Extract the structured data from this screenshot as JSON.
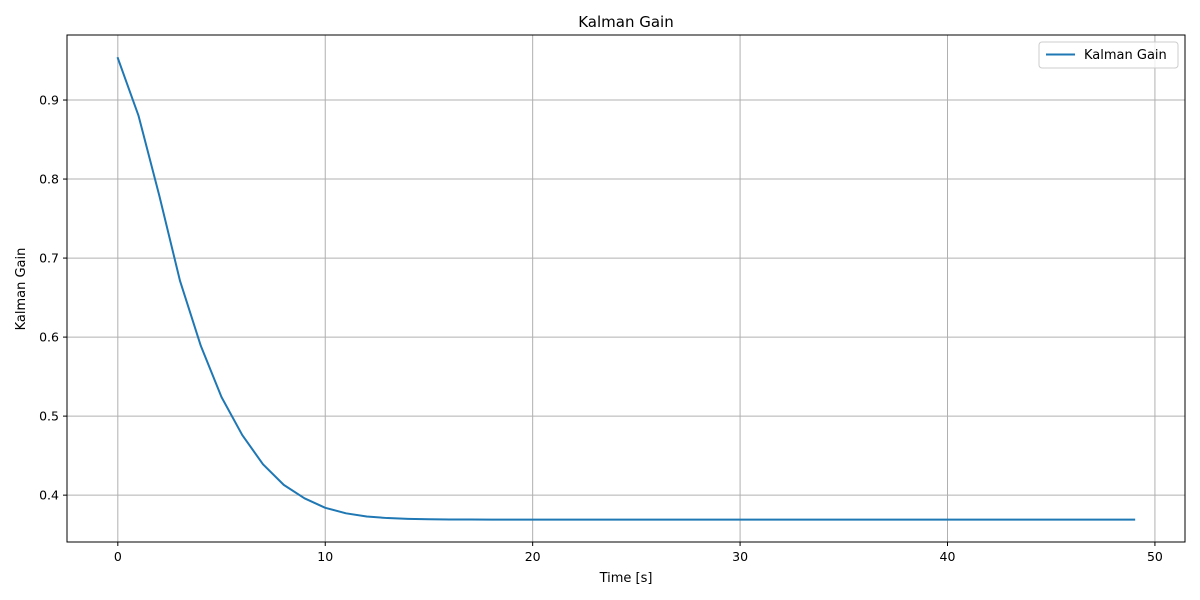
{
  "chart_data": {
    "type": "line",
    "title": "Kalman Gain",
    "xlabel": "Time [s]",
    "ylabel": "Kalman Gain",
    "xlim": [
      -2.45,
      51.45
    ],
    "ylim": [
      0.3407,
      0.9823
    ],
    "xticks": [
      0,
      10,
      20,
      30,
      40,
      50
    ],
    "yticks": [
      0.4,
      0.5,
      0.6,
      0.7,
      0.8,
      0.9
    ],
    "xtick_labels": [
      "0",
      "10",
      "20",
      "30",
      "40",
      "50"
    ],
    "ytick_labels": [
      "0.4",
      "0.5",
      "0.6",
      "0.7",
      "0.8",
      "0.9"
    ],
    "grid": true,
    "legend_position": "top-right",
    "series": [
      {
        "name": "Kalman Gain",
        "color": "#1f77b4",
        "x": [
          0,
          1,
          2,
          3,
          4,
          5,
          6,
          7,
          8,
          9,
          10,
          11,
          12,
          13,
          14,
          15,
          16,
          17,
          18,
          19,
          20,
          21,
          22,
          23,
          24,
          25,
          26,
          27,
          28,
          29,
          30,
          31,
          32,
          33,
          34,
          35,
          36,
          37,
          38,
          39,
          40,
          41,
          42,
          43,
          44,
          45,
          46,
          47,
          48,
          49
        ],
        "y": [
          0.953,
          0.88,
          0.779,
          0.671,
          0.589,
          0.524,
          0.476,
          0.439,
          0.413,
          0.396,
          0.384,
          0.377,
          0.373,
          0.371,
          0.37,
          0.3695,
          0.3692,
          0.3691,
          0.369,
          0.369,
          0.369,
          0.369,
          0.369,
          0.369,
          0.369,
          0.369,
          0.369,
          0.369,
          0.369,
          0.369,
          0.369,
          0.369,
          0.369,
          0.369,
          0.369,
          0.369,
          0.369,
          0.369,
          0.369,
          0.369,
          0.369,
          0.369,
          0.369,
          0.369,
          0.369,
          0.369,
          0.369,
          0.369,
          0.369,
          0.369
        ]
      }
    ]
  }
}
